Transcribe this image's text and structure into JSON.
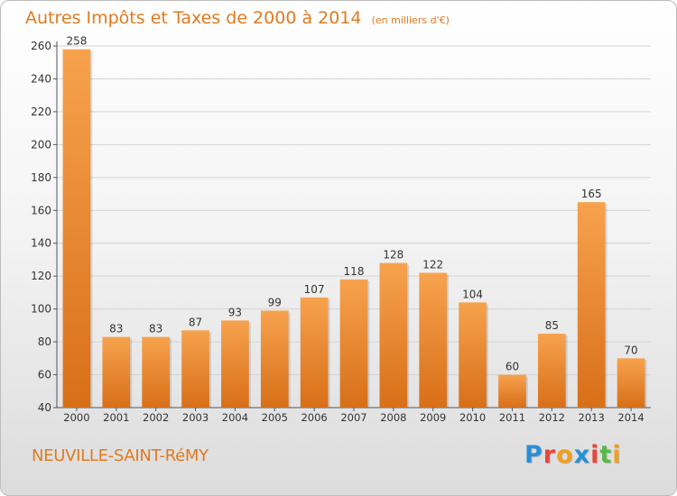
{
  "title": "Autres Impôts et Taxes de 2000 à 2014",
  "unit_note": "(en milliers d'€)",
  "commune": "NEUVILLE-SAINT-RéMY",
  "brand": {
    "text": "Proxiti",
    "letter_colors": [
      "#2a8fd6",
      "#e8463c",
      "#f0a020",
      "#2a8fd6",
      "#e8463c",
      "#59b947",
      "#f0a020"
    ]
  },
  "colors": {
    "bar_light": "#f7a24e",
    "bar_dark": "#d86f18",
    "title": "#e07a1f"
  },
  "chart_data": {
    "type": "bar",
    "categories": [
      "2000",
      "2001",
      "2002",
      "2003",
      "2004",
      "2005",
      "2006",
      "2007",
      "2008",
      "2009",
      "2010",
      "2011",
      "2012",
      "2013",
      "2014"
    ],
    "values": [
      258,
      83,
      83,
      87,
      93,
      99,
      107,
      118,
      128,
      122,
      104,
      60,
      85,
      165,
      70
    ],
    "ylim": [
      40,
      260
    ],
    "yticks": [
      40,
      60,
      80,
      100,
      120,
      140,
      160,
      180,
      200,
      220,
      240,
      260
    ],
    "grid": true,
    "legend": "none"
  }
}
